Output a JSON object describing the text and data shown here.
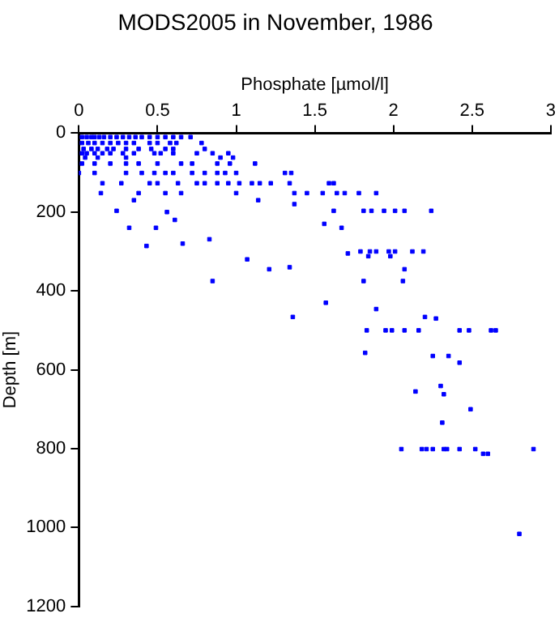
{
  "chart_data": {
    "type": "scatter",
    "title": "MODS2005 in November, 1986",
    "xlabel": "Phosphate [µmol/l]",
    "ylabel": "Depth [m]",
    "xlim": [
      0,
      3
    ],
    "xticks": [
      0,
      0.5,
      1,
      1.5,
      2,
      2.5,
      3
    ],
    "ylim": [
      1200,
      0
    ],
    "yticks": [
      0,
      200,
      400,
      600,
      800,
      1000,
      1200
    ],
    "grid": false,
    "legend": false,
    "marker": "square",
    "series": [
      {
        "color": "#0000ff",
        "x": [
          0.02,
          0.05,
          0.08,
          0.1,
          0.13,
          0.16,
          0.2,
          0.24,
          0.28,
          0.32,
          0.36,
          0.4,
          0.45,
          0.5,
          0.55,
          0.6,
          0.65,
          0.71,
          0.02,
          0.06,
          0.1,
          0.15,
          0.2,
          0.25,
          0.3,
          0.35,
          0.45,
          0.5,
          0.58,
          0.62,
          0.78,
          0.03,
          0.08,
          0.12,
          0.18,
          0.22,
          0.3,
          0.38,
          0.46,
          0.55,
          0.6,
          0.8,
          0.02,
          0.05,
          0.1,
          0.15,
          0.2,
          0.28,
          0.35,
          0.48,
          0.52,
          0.6,
          0.75,
          0.85,
          0.95,
          0.04,
          0.12,
          0.3,
          0.9,
          0.98,
          0.02,
          0.1,
          0.2,
          0.3,
          0.38,
          0.5,
          0.65,
          0.72,
          0.88,
          0.96,
          1.12,
          0.0,
          0.1,
          0.3,
          0.4,
          0.48,
          0.55,
          0.6,
          0.72,
          0.8,
          0.88,
          0.93,
          1.0,
          1.31,
          1.35,
          0.15,
          0.27,
          0.45,
          0.5,
          0.63,
          0.75,
          0.8,
          0.88,
          0.95,
          1.02,
          1.1,
          1.15,
          1.22,
          1.34,
          1.59,
          1.62,
          0.14,
          0.38,
          0.55,
          0.65,
          1.0,
          1.37,
          1.45,
          1.55,
          1.64,
          1.69,
          1.78,
          1.89,
          1.14,
          1.37,
          0.35,
          0.24,
          0.56,
          1.62,
          1.81,
          1.86,
          1.94,
          2.01,
          2.07,
          2.24,
          0.61,
          0.32,
          0.49,
          1.56,
          1.67,
          0.83,
          0.43,
          0.66,
          1.71,
          1.79,
          1.85,
          1.89,
          1.97,
          2.01,
          2.12,
          2.19,
          1.84,
          1.98,
          1.07,
          1.21,
          1.34,
          2.07,
          0.85,
          1.81,
          2.06,
          1.57,
          1.89,
          1.36,
          2.2,
          2.27,
          1.83,
          1.95,
          1.99,
          2.07,
          2.16,
          2.42,
          2.48,
          2.62,
          2.65,
          1.82,
          2.25,
          2.35,
          2.42,
          2.3,
          2.14,
          2.32,
          2.49,
          2.31,
          2.05,
          2.18,
          2.21,
          2.25,
          2.32,
          2.34,
          2.42,
          2.52,
          2.89,
          2.57,
          2.6,
          2.8
        ],
        "values": [
          10,
          10,
          10,
          10,
          10,
          10,
          10,
          10,
          10,
          10,
          10,
          10,
          10,
          10,
          10,
          10,
          10,
          10,
          25,
          25,
          25,
          25,
          25,
          25,
          25,
          25,
          25,
          25,
          25,
          25,
          25,
          40,
          40,
          40,
          40,
          40,
          40,
          40,
          40,
          40,
          40,
          40,
          51,
          51,
          51,
          51,
          51,
          51,
          51,
          51,
          51,
          51,
          51,
          51,
          51,
          62,
          62,
          62,
          62,
          62,
          77,
          77,
          77,
          77,
          77,
          77,
          77,
          77,
          77,
          77,
          77,
          101,
          101,
          101,
          101,
          101,
          101,
          101,
          101,
          101,
          101,
          101,
          101,
          101,
          101,
          127,
          127,
          127,
          127,
          127,
          127,
          127,
          127,
          127,
          127,
          127,
          127,
          127,
          127,
          127,
          127,
          152,
          152,
          152,
          152,
          152,
          152,
          152,
          152,
          152,
          152,
          152,
          152,
          170,
          180,
          170,
          197,
          200,
          197,
          197,
          197,
          197,
          197,
          197,
          197,
          220,
          240,
          240,
          230,
          240,
          269,
          286,
          280,
          305,
          300,
          300,
          300,
          300,
          300,
          300,
          300,
          312,
          312,
          320,
          345,
          340,
          345,
          375,
          375,
          375,
          430,
          446,
          466,
          466,
          470,
          500,
          500,
          500,
          500,
          500,
          500,
          500,
          500,
          500,
          557,
          565,
          565,
          582,
          641,
          655,
          662,
          700,
          734,
          801,
          801,
          801,
          801,
          801,
          801,
          801,
          801,
          801,
          813,
          813,
          1016
        ]
      }
    ]
  }
}
